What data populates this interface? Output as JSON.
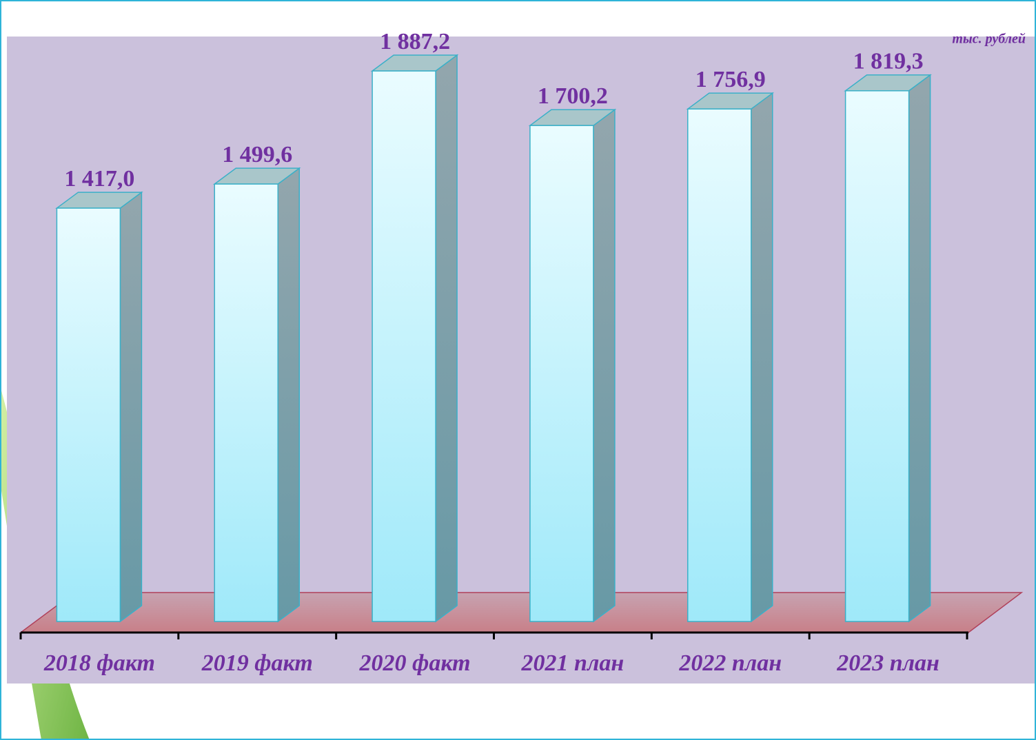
{
  "chart_data": {
    "type": "bar3d",
    "unit": "тыс. рублей",
    "categories": [
      "2018 факт",
      "2019 факт",
      "2020 факт",
      "2021 план",
      "2022 план",
      "2023 план"
    ],
    "values": [
      1417.0,
      1499.6,
      1887.2,
      1700.2,
      1756.9,
      1819.3
    ],
    "value_labels": [
      "1 417,0",
      "1 499,6",
      "1 887,2",
      "1 700,2",
      "1 756,9",
      "1 819,3"
    ],
    "color": "#a6ecfa"
  }
}
